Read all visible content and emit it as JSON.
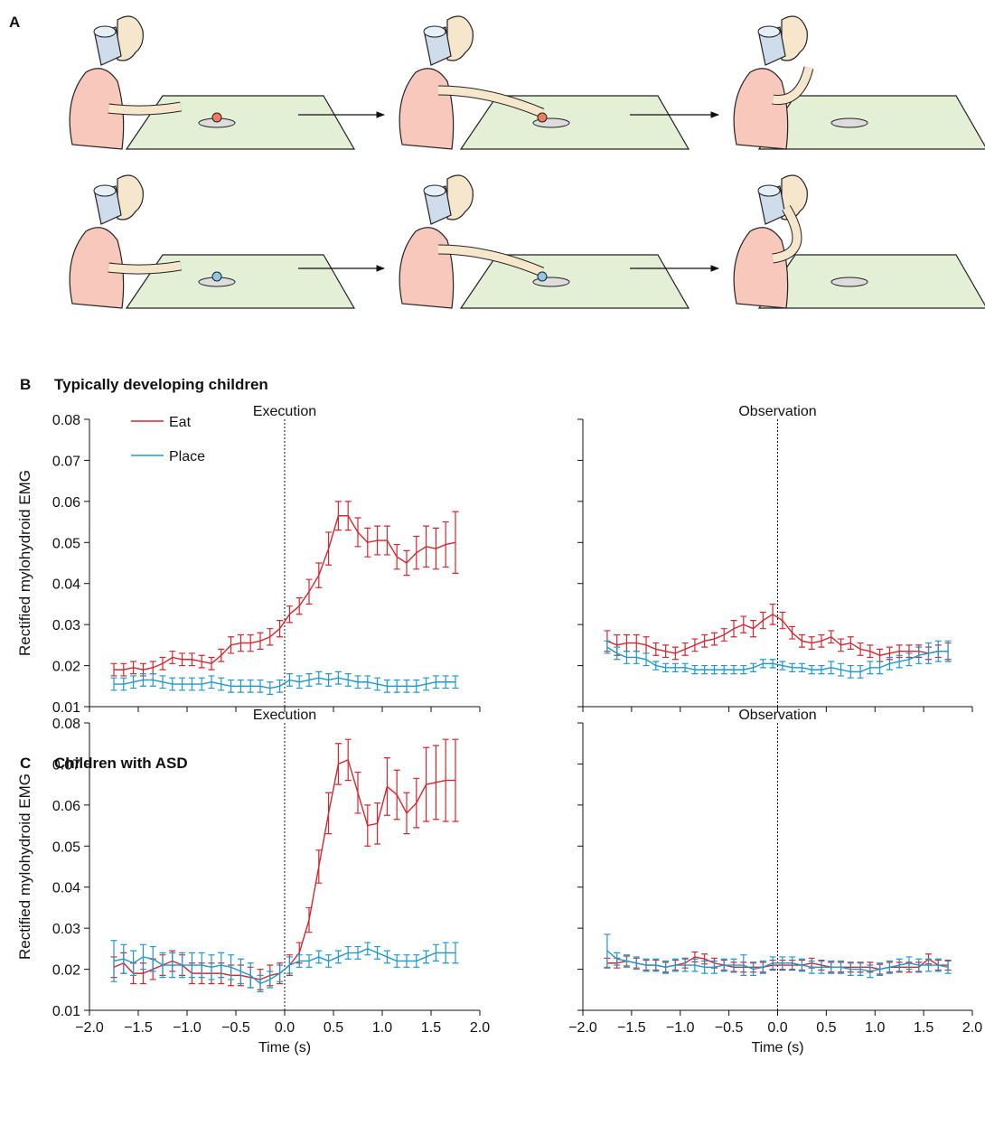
{
  "panels": [
    {
      "label": "A"
    },
    {
      "label": "B",
      "title": "Typically developing children"
    },
    {
      "label": "C",
      "title": "Children with ASD"
    }
  ],
  "chart_data": [
    {
      "type": "line",
      "title": "Execution",
      "ylabel": "Rectified mylohydroid EMG",
      "x": [
        -1.75,
        -1.65,
        -1.55,
        -1.45,
        -1.35,
        -1.25,
        -1.15,
        -1.05,
        -0.95,
        -0.85,
        -0.75,
        -0.65,
        -0.55,
        -0.45,
        -0.35,
        -0.25,
        -0.15,
        -0.05,
        0.05,
        0.15,
        0.25,
        0.35,
        0.45,
        0.55,
        0.65,
        0.75,
        0.85,
        0.95,
        1.05,
        1.15,
        1.25,
        1.35,
        1.45,
        1.55,
        1.65,
        1.75
      ],
      "series": [
        {
          "name": "Eat",
          "color": "#d7262e",
          "values": [
            0.019,
            0.019,
            0.0195,
            0.019,
            0.0195,
            0.0205,
            0.022,
            0.0215,
            0.0215,
            0.021,
            0.0205,
            0.0225,
            0.025,
            0.0255,
            0.0255,
            0.026,
            0.027,
            0.029,
            0.0325,
            0.0345,
            0.038,
            0.042,
            0.0485,
            0.0565,
            0.0565,
            0.0525,
            0.05,
            0.0505,
            0.0505,
            0.0465,
            0.045,
            0.0475,
            0.049,
            0.0485,
            0.0495,
            0.05
          ],
          "errors": [
            0.0015,
            0.0015,
            0.0015,
            0.0015,
            0.0015,
            0.0015,
            0.0015,
            0.0015,
            0.0015,
            0.0015,
            0.0015,
            0.0015,
            0.002,
            0.002,
            0.002,
            0.002,
            0.002,
            0.002,
            0.002,
            0.002,
            0.003,
            0.003,
            0.004,
            0.0035,
            0.0035,
            0.0035,
            0.0035,
            0.0035,
            0.0035,
            0.003,
            0.003,
            0.004,
            0.005,
            0.005,
            0.0055,
            0.0075
          ]
        },
        {
          "name": "Place",
          "color": "#1e98cf",
          "values": [
            0.0155,
            0.0155,
            0.016,
            0.0165,
            0.0165,
            0.016,
            0.0155,
            0.0155,
            0.0155,
            0.0155,
            0.016,
            0.0155,
            0.015,
            0.015,
            0.015,
            0.015,
            0.0145,
            0.015,
            0.0165,
            0.016,
            0.0165,
            0.017,
            0.0165,
            0.017,
            0.0165,
            0.016,
            0.016,
            0.0155,
            0.015,
            0.015,
            0.015,
            0.015,
            0.0155,
            0.016,
            0.016,
            0.016
          ],
          "errors": [
            0.0015,
            0.0015,
            0.0015,
            0.0015,
            0.0015,
            0.0015,
            0.0015,
            0.0015,
            0.0015,
            0.0015,
            0.0015,
            0.0015,
            0.0015,
            0.0015,
            0.0015,
            0.0015,
            0.0015,
            0.0015,
            0.0015,
            0.0015,
            0.0015,
            0.0015,
            0.0015,
            0.0015,
            0.0015,
            0.0015,
            0.0015,
            0.0015,
            0.0015,
            0.0015,
            0.0015,
            0.0015,
            0.0015,
            0.0015,
            0.0015,
            0.0015
          ]
        }
      ],
      "xlim": [
        -2,
        2
      ],
      "ylim": [
        0.01,
        0.08
      ],
      "xticks": [
        -2,
        -1.5,
        -1,
        -0.5,
        0,
        0.5,
        1,
        1.5,
        2
      ],
      "xtick_labels": false,
      "yticks": [
        0.01,
        0.02,
        0.03,
        0.04,
        0.05,
        0.06,
        0.07,
        0.08
      ],
      "vline": 0,
      "legend": "upper left"
    },
    {
      "type": "line",
      "title": "Observation",
      "x": [
        -1.75,
        -1.65,
        -1.55,
        -1.45,
        -1.35,
        -1.25,
        -1.15,
        -1.05,
        -0.95,
        -0.85,
        -0.75,
        -0.65,
        -0.55,
        -0.45,
        -0.35,
        -0.25,
        -0.15,
        -0.05,
        0.05,
        0.15,
        0.25,
        0.35,
        0.45,
        0.55,
        0.65,
        0.75,
        0.85,
        0.95,
        1.05,
        1.15,
        1.25,
        1.35,
        1.45,
        1.55,
        1.65,
        1.75
      ],
      "series": [
        {
          "name": "Eat",
          "color": "#d7262e",
          "values": [
            0.026,
            0.025,
            0.0255,
            0.0255,
            0.025,
            0.024,
            0.0235,
            0.023,
            0.024,
            0.025,
            0.026,
            0.0265,
            0.0275,
            0.029,
            0.03,
            0.029,
            0.031,
            0.0325,
            0.031,
            0.028,
            0.026,
            0.0255,
            0.026,
            0.027,
            0.025,
            0.0255,
            0.024,
            0.0235,
            0.0225,
            0.023,
            0.0235,
            0.0235,
            0.0235,
            0.023,
            0.0235,
            0.0235
          ],
          "errors": [
            0.0025,
            0.0025,
            0.002,
            0.002,
            0.002,
            0.0015,
            0.0015,
            0.0015,
            0.0015,
            0.0015,
            0.0015,
            0.0015,
            0.0015,
            0.002,
            0.002,
            0.002,
            0.002,
            0.0025,
            0.002,
            0.0015,
            0.0015,
            0.0015,
            0.0015,
            0.0015,
            0.0015,
            0.0015,
            0.0015,
            0.0015,
            0.0015,
            0.0015,
            0.0015,
            0.0015,
            0.0015,
            0.0015,
            0.0015,
            0.002
          ]
        },
        {
          "name": "Place",
          "color": "#1e98cf",
          "values": [
            0.0245,
            0.023,
            0.022,
            0.022,
            0.0215,
            0.02,
            0.0195,
            0.0195,
            0.0195,
            0.019,
            0.019,
            0.019,
            0.019,
            0.019,
            0.019,
            0.0195,
            0.0205,
            0.0205,
            0.02,
            0.0195,
            0.0195,
            0.019,
            0.019,
            0.0195,
            0.019,
            0.0185,
            0.0185,
            0.0195,
            0.0195,
            0.0205,
            0.021,
            0.0215,
            0.0225,
            0.023,
            0.0235,
            0.0235
          ],
          "errors": [
            0.0015,
            0.0015,
            0.0015,
            0.0015,
            0.0015,
            0.001,
            0.001,
            0.001,
            0.001,
            0.001,
            0.001,
            0.001,
            0.001,
            0.001,
            0.001,
            0.001,
            0.001,
            0.001,
            0.001,
            0.001,
            0.001,
            0.001,
            0.001,
            0.0015,
            0.0015,
            0.0015,
            0.0015,
            0.0015,
            0.0015,
            0.0015,
            0.0015,
            0.0015,
            0.002,
            0.0025,
            0.0025,
            0.0025
          ]
        }
      ],
      "xlim": [
        -2,
        2
      ],
      "ylim": [
        0.01,
        0.08
      ],
      "xticks": [
        -2,
        -1.5,
        -1,
        -0.5,
        0,
        0.5,
        1,
        1.5,
        2
      ],
      "xtick_labels": false,
      "yticks": [
        0.01,
        0.02,
        0.03,
        0.04,
        0.05,
        0.06,
        0.07,
        0.08
      ],
      "ytick_labels": false,
      "vline": 0
    },
    {
      "type": "line",
      "title": "Execution",
      "ylabel": "Rectified mylohydroid EMG",
      "xlabel": "Time (s)",
      "x": [
        -1.75,
        -1.65,
        -1.55,
        -1.45,
        -1.35,
        -1.25,
        -1.15,
        -1.05,
        -0.95,
        -0.85,
        -0.75,
        -0.65,
        -0.55,
        -0.45,
        -0.35,
        -0.25,
        -0.15,
        -0.05,
        0.05,
        0.15,
        0.25,
        0.35,
        0.45,
        0.55,
        0.65,
        0.75,
        0.85,
        0.95,
        1.05,
        1.15,
        1.25,
        1.35,
        1.45,
        1.55,
        1.65,
        1.75
      ],
      "series": [
        {
          "name": "Eat",
          "color": "#d7262e",
          "values": [
            0.0205,
            0.0215,
            0.019,
            0.019,
            0.02,
            0.021,
            0.022,
            0.021,
            0.019,
            0.019,
            0.019,
            0.019,
            0.0185,
            0.0185,
            0.018,
            0.0175,
            0.0185,
            0.019,
            0.021,
            0.024,
            0.032,
            0.045,
            0.058,
            0.07,
            0.071,
            0.063,
            0.055,
            0.0555,
            0.0645,
            0.0625,
            0.058,
            0.0605,
            0.065,
            0.0655,
            0.066,
            0.066
          ],
          "errors": [
            0.0025,
            0.0025,
            0.0025,
            0.0025,
            0.0025,
            0.0025,
            0.0025,
            0.0025,
            0.0025,
            0.0025,
            0.0025,
            0.0025,
            0.0025,
            0.0025,
            0.0025,
            0.0025,
            0.0025,
            0.0025,
            0.0025,
            0.0025,
            0.003,
            0.004,
            0.005,
            0.005,
            0.005,
            0.005,
            0.005,
            0.005,
            0.007,
            0.006,
            0.005,
            0.006,
            0.009,
            0.009,
            0.01,
            0.01
          ]
        },
        {
          "name": "Place",
          "color": "#1e98cf",
          "values": [
            0.022,
            0.0225,
            0.0215,
            0.023,
            0.0225,
            0.021,
            0.021,
            0.021,
            0.021,
            0.021,
            0.0205,
            0.021,
            0.0205,
            0.0195,
            0.0185,
            0.0165,
            0.0175,
            0.019,
            0.021,
            0.022,
            0.022,
            0.023,
            0.022,
            0.023,
            0.024,
            0.024,
            0.025,
            0.024,
            0.023,
            0.022,
            0.022,
            0.022,
            0.023,
            0.024,
            0.024,
            0.024
          ],
          "errors": [
            0.005,
            0.0035,
            0.003,
            0.003,
            0.003,
            0.003,
            0.003,
            0.003,
            0.003,
            0.003,
            0.003,
            0.003,
            0.003,
            0.003,
            0.003,
            0.002,
            0.002,
            0.002,
            0.002,
            0.0015,
            0.0015,
            0.0015,
            0.0015,
            0.0015,
            0.0015,
            0.0015,
            0.0015,
            0.0015,
            0.0015,
            0.0015,
            0.0015,
            0.0015,
            0.0015,
            0.002,
            0.0025,
            0.0025
          ]
        }
      ],
      "xlim": [
        -2,
        2
      ],
      "ylim": [
        0.01,
        0.08
      ],
      "xticks": [
        {
          "value": -2,
          "label": "−2.0"
        },
        {
          "value": -1.5,
          "label": "−1.5"
        },
        {
          "value": -1,
          "label": "−1.0"
        },
        {
          "value": -0.5,
          "label": "−0.5"
        },
        {
          "value": 0,
          "label": "0.0"
        },
        0.5,
        {
          "value": 1,
          "label": "1.0"
        },
        1.5,
        {
          "value": 2,
          "label": "2.0"
        }
      ],
      "yticks": [
        0.01,
        0.02,
        0.03,
        0.04,
        0.05,
        0.06,
        0.07,
        0.08
      ],
      "vline": 0
    },
    {
      "type": "line",
      "title": "Observation",
      "xlabel": "Time (s)",
      "x": [
        -1.75,
        -1.65,
        -1.55,
        -1.45,
        -1.35,
        -1.25,
        -1.15,
        -1.05,
        -0.95,
        -0.85,
        -0.75,
        -0.65,
        -0.55,
        -0.45,
        -0.35,
        -0.25,
        -0.15,
        -0.05,
        0.05,
        0.15,
        0.25,
        0.35,
        0.45,
        0.55,
        0.65,
        0.75,
        0.85,
        0.95,
        1.05,
        1.15,
        1.25,
        1.35,
        1.45,
        1.55,
        1.65,
        1.75
      ],
      "series": [
        {
          "name": "Eat",
          "color": "#d7262e",
          "values": [
            0.0215,
            0.0215,
            0.022,
            0.0215,
            0.021,
            0.021,
            0.0205,
            0.021,
            0.0215,
            0.023,
            0.0225,
            0.0215,
            0.021,
            0.0205,
            0.0205,
            0.0205,
            0.0205,
            0.021,
            0.021,
            0.021,
            0.021,
            0.0215,
            0.021,
            0.0205,
            0.0205,
            0.0205,
            0.0205,
            0.0205,
            0.02,
            0.0205,
            0.0205,
            0.0205,
            0.0205,
            0.0225,
            0.021,
            0.021
          ],
          "errors": [
            0.0012,
            0.0012,
            0.0012,
            0.0012,
            0.0012,
            0.0012,
            0.0012,
            0.0012,
            0.0012,
            0.0012,
            0.0012,
            0.0012,
            0.0012,
            0.0012,
            0.0012,
            0.0012,
            0.0012,
            0.0012,
            0.0012,
            0.0012,
            0.0012,
            0.0012,
            0.0012,
            0.0012,
            0.0012,
            0.0012,
            0.0012,
            0.0012,
            0.0012,
            0.0012,
            0.0012,
            0.0012,
            0.0012,
            0.0012,
            0.0012,
            0.0012
          ]
        },
        {
          "name": "Place",
          "color": "#1e98cf",
          "values": [
            0.0245,
            0.0225,
            0.022,
            0.0215,
            0.021,
            0.021,
            0.0205,
            0.021,
            0.021,
            0.021,
            0.0205,
            0.0205,
            0.021,
            0.021,
            0.021,
            0.02,
            0.0205,
            0.0215,
            0.0215,
            0.0215,
            0.021,
            0.0205,
            0.0205,
            0.0205,
            0.0205,
            0.02,
            0.02,
            0.0195,
            0.02,
            0.0205,
            0.021,
            0.0215,
            0.021,
            0.021,
            0.021,
            0.0205
          ],
          "errors": [
            0.004,
            0.0015,
            0.0015,
            0.0015,
            0.0015,
            0.0015,
            0.0015,
            0.0015,
            0.0015,
            0.0015,
            0.0015,
            0.0015,
            0.0015,
            0.0015,
            0.0025,
            0.0015,
            0.0015,
            0.0015,
            0.0015,
            0.0015,
            0.0015,
            0.0015,
            0.0015,
            0.0015,
            0.0015,
            0.0015,
            0.0015,
            0.0015,
            0.0015,
            0.0015,
            0.0015,
            0.0015,
            0.0015,
            0.0015,
            0.0015,
            0.0015
          ]
        }
      ],
      "xlim": [
        -2,
        2
      ],
      "ylim": [
        0.01,
        0.08
      ],
      "xticks": [
        {
          "value": -2,
          "label": "−2.0"
        },
        {
          "value": -1.5,
          "label": "−1.5"
        },
        {
          "value": -1,
          "label": "−1.0"
        },
        {
          "value": -0.5,
          "label": "−0.5"
        },
        {
          "value": 0,
          "label": "0.0"
        },
        0.5,
        {
          "value": 1,
          "label": "1.0"
        },
        1.5,
        {
          "value": 2,
          "label": "2.0"
        }
      ],
      "yticks": [
        0.01,
        0.02,
        0.03,
        0.04,
        0.05,
        0.06,
        0.07,
        0.08
      ],
      "ytick_labels": false,
      "vline": 0
    }
  ]
}
